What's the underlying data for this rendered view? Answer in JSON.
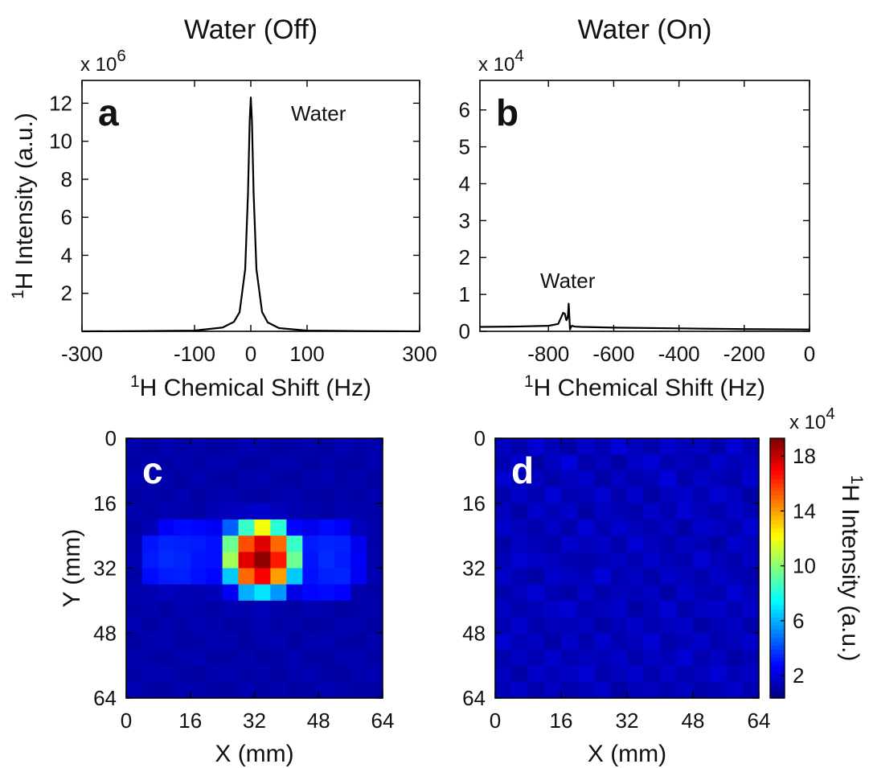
{
  "chart_data": [
    {
      "type": "line",
      "title": "Water (Off)",
      "panel_label": "a",
      "annotation": "Water",
      "multiplier": "x 10",
      "multiplier_exp": "6",
      "xlabel_sup": "1",
      "xlabel": "H Chemical Shift (Hz)",
      "ylabel_sup": "1",
      "ylabel": "H Intensity (a.u.)",
      "x": [
        -300,
        -200,
        -100,
        -50,
        -30,
        -20,
        -10,
        -5,
        -2,
        0,
        2,
        5,
        10,
        20,
        30,
        50,
        100,
        200,
        300
      ],
      "series": [
        {
          "color": "#000000",
          "values": [
            0.0,
            0.01,
            0.04,
            0.2,
            0.5,
            1.0,
            3.26,
            7.26,
            11.07,
            12.3,
            11.07,
            7.26,
            3.26,
            1.02,
            0.47,
            0.17,
            0.04,
            0.01,
            0.0
          ]
        }
      ],
      "xlim": [
        -300,
        300
      ],
      "xticks": [
        -300,
        -100,
        0,
        100,
        300
      ],
      "ylim": [
        0,
        13.2
      ],
      "yticks": [
        2,
        4,
        6,
        8,
        10,
        12
      ]
    },
    {
      "type": "line",
      "title": "Water (On)",
      "panel_label": "b",
      "annotation": "Water",
      "multiplier": "x 10",
      "multiplier_exp": "4",
      "xlabel_sup": "1",
      "xlabel": "H Chemical Shift (Hz)",
      "x": [
        -1010,
        -900,
        -800,
        -770,
        -760,
        -755,
        -750,
        -745,
        -742,
        -740,
        -738,
        -736,
        -734,
        -732,
        -728,
        -720,
        -700,
        -600,
        -400,
        -200,
        0
      ],
      "series": [
        {
          "color": "#000000",
          "values": [
            0.12,
            0.13,
            0.15,
            0.2,
            0.4,
            0.5,
            0.48,
            0.3,
            0.35,
            0.45,
            0.75,
            0.4,
            0.05,
            0.1,
            0.15,
            0.13,
            0.12,
            0.1,
            0.08,
            0.06,
            0.05
          ]
        }
      ],
      "xlim": [
        -1010,
        0
      ],
      "xticks": [
        -800,
        -600,
        -400,
        -200,
        0
      ],
      "ylim": [
        0,
        6.8
      ],
      "yticks": [
        0,
        1,
        2,
        3,
        4,
        5,
        6
      ]
    },
    {
      "type": "heatmap",
      "panel_label": "c",
      "xlabel": "X (mm)",
      "ylabel": "Y (mm)",
      "xlim": [
        0,
        64
      ],
      "xticks": [
        0,
        16,
        32,
        48,
        64
      ],
      "ylim": [
        0,
        64
      ],
      "yticks": [
        0,
        16,
        32,
        48,
        64
      ],
      "y_reversed": true,
      "z": [
        [
          1.2,
          1.0,
          1.3,
          1.1,
          1.2,
          1.0,
          1.1,
          1.3,
          1.2,
          1.0,
          1.1,
          1.2,
          1.0,
          1.3,
          1.1,
          1.2
        ],
        [
          1.1,
          1.3,
          1.0,
          1.2,
          1.1,
          1.3,
          1.2,
          1.0,
          1.1,
          1.3,
          1.2,
          1.0,
          1.2,
          1.1,
          1.0,
          1.3
        ],
        [
          1.3,
          1.1,
          1.2,
          1.0,
          1.3,
          1.1,
          1.0,
          1.2,
          1.3,
          1.1,
          1.0,
          1.2,
          1.3,
          1.1,
          1.2,
          1.0
        ],
        [
          1.0,
          1.2,
          1.1,
          1.3,
          1.0,
          1.2,
          1.3,
          1.1,
          1.0,
          1.2,
          1.3,
          1.1,
          1.0,
          1.2,
          1.1,
          1.3
        ],
        [
          1.2,
          1.1,
          1.3,
          1.2,
          1.1,
          1.4,
          1.5,
          1.6,
          1.8,
          1.5,
          1.3,
          1.2,
          1.1,
          1.3,
          1.2,
          1.1
        ],
        [
          1.1,
          1.4,
          2.6,
          2.9,
          2.8,
          2.5,
          4.5,
          8.5,
          12,
          8.2,
          2.8,
          2.4,
          2.9,
          2.6,
          1.5,
          1.2
        ],
        [
          1.2,
          3.1,
          3.4,
          3.3,
          3.2,
          3.0,
          9.5,
          15.5,
          17.5,
          15,
          8.5,
          3.2,
          3.4,
          3.3,
          2.4,
          1.1
        ],
        [
          1.3,
          3.2,
          3.5,
          3.4,
          3.1,
          3.0,
          10.5,
          17.5,
          19,
          16.5,
          9.5,
          3.1,
          3.5,
          3.2,
          2.6,
          1.2
        ],
        [
          1.1,
          2.9,
          3.2,
          3.3,
          3.0,
          2.8,
          6.5,
          15,
          17,
          14,
          6.5,
          3.0,
          3.3,
          3.4,
          2.5,
          1.3
        ],
        [
          1.2,
          1.3,
          1.5,
          1.4,
          1.3,
          1.4,
          2.5,
          6.0,
          7.0,
          5.5,
          2.2,
          2.8,
          2.9,
          2.7,
          1.2,
          1.1
        ],
        [
          1.1,
          1.2,
          1.0,
          1.3,
          1.2,
          1.1,
          1.3,
          1.2,
          1.4,
          1.2,
          1.1,
          1.3,
          1.2,
          1.0,
          1.1,
          1.2
        ],
        [
          1.3,
          1.0,
          1.2,
          1.1,
          1.3,
          1.2,
          1.0,
          1.1,
          1.3,
          1.1,
          1.2,
          1.0,
          1.1,
          1.3,
          1.2,
          1.0
        ],
        [
          1.0,
          1.2,
          1.3,
          1.0,
          1.1,
          1.3,
          1.2,
          1.0,
          1.2,
          1.3,
          1.0,
          1.2,
          1.3,
          1.1,
          1.0,
          1.2
        ],
        [
          1.2,
          1.1,
          1.0,
          1.2,
          1.3,
          1.0,
          1.1,
          1.2,
          1.0,
          1.1,
          1.3,
          1.1,
          1.0,
          1.2,
          1.3,
          1.1
        ],
        [
          1.1,
          1.3,
          1.2,
          1.1,
          1.0,
          1.2,
          1.3,
          1.1,
          1.2,
          1.0,
          1.2,
          1.3,
          1.1,
          1.0,
          1.2,
          1.3
        ],
        [
          1.3,
          1.1,
          1.0,
          1.3,
          1.2,
          1.1,
          1.0,
          1.3,
          1.1,
          1.2,
          1.0,
          1.1,
          1.3,
          1.2,
          1.1,
          1.0
        ]
      ]
    },
    {
      "type": "heatmap",
      "panel_label": "d",
      "xlabel": "X (mm)",
      "xlim": [
        0,
        64
      ],
      "xticks": [
        0,
        16,
        32,
        48,
        64
      ],
      "ylim": [
        0,
        64
      ],
      "yticks": [
        0,
        16,
        32,
        48,
        64
      ],
      "y_reversed": true,
      "z": [
        [
          1.6,
          1.2,
          1.9,
          1.4,
          1.1,
          1.7,
          1.3,
          2.0,
          1.5,
          1.2,
          1.8,
          1.4,
          1.6,
          1.1,
          1.9,
          1.3
        ],
        [
          1.3,
          1.8,
          1.1,
          1.6,
          2.1,
          1.2,
          1.5,
          1.1,
          1.7,
          1.9,
          1.3,
          1.5,
          1.2,
          1.8,
          1.4,
          1.6
        ],
        [
          1.9,
          1.4,
          1.6,
          1.2,
          1.5,
          1.8,
          1.1,
          1.6,
          1.3,
          1.4,
          2.0,
          1.2,
          1.7,
          1.4,
          1.2,
          1.8
        ],
        [
          1.2,
          1.7,
          1.3,
          1.9,
          1.3,
          1.4,
          1.9,
          1.2,
          1.8,
          1.1,
          1.5,
          1.7,
          1.3,
          1.9,
          1.6,
          1.1
        ],
        [
          1.5,
          1.1,
          1.8,
          1.4,
          1.7,
          1.1,
          1.6,
          1.4,
          1.2,
          1.7,
          1.3,
          1.9,
          1.5,
          1.2,
          1.7,
          1.4
        ],
        [
          1.8,
          1.5,
          1.2,
          1.6,
          1.2,
          1.9,
          1.3,
          1.8,
          1.5,
          1.3,
          1.6,
          1.1,
          1.8,
          1.6,
          1.3,
          1.9
        ],
        [
          1.1,
          1.6,
          1.4,
          1.2,
          1.8,
          1.5,
          1.7,
          1.2,
          1.9,
          1.5,
          1.2,
          1.6,
          1.4,
          1.1,
          1.8,
          1.5
        ],
        [
          1.4,
          1.9,
          1.7,
          1.5,
          1.3,
          1.2,
          1.4,
          1.6,
          1.3,
          1.8,
          1.4,
          1.3,
          1.9,
          1.5,
          1.2,
          1.6
        ],
        [
          1.7,
          1.3,
          1.1,
          1.8,
          1.6,
          1.4,
          2.0,
          1.3,
          1.6,
          1.2,
          1.7,
          1.5,
          1.2,
          1.7,
          1.4,
          1.2
        ],
        [
          1.2,
          1.5,
          1.9,
          1.3,
          1.1,
          1.7,
          1.2,
          1.5,
          1.4,
          1.6,
          1.1,
          1.8,
          1.4,
          1.3,
          1.9,
          1.5
        ],
        [
          1.6,
          1.2,
          1.4,
          1.7,
          1.9,
          1.3,
          1.5,
          1.8,
          1.1,
          1.4,
          1.9,
          1.2,
          1.6,
          1.8,
          1.3,
          1.7
        ],
        [
          1.3,
          1.8,
          1.2,
          1.5,
          1.4,
          1.6,
          1.1,
          1.4,
          1.7,
          1.3,
          1.5,
          1.7,
          1.1,
          1.4,
          1.6,
          1.2
        ],
        [
          1.9,
          1.4,
          1.6,
          1.1,
          1.7,
          1.2,
          1.8,
          1.3,
          1.5,
          1.9,
          1.2,
          1.4,
          1.8,
          1.2,
          1.5,
          1.8
        ],
        [
          1.2,
          1.6,
          1.3,
          1.8,
          1.3,
          1.5,
          1.4,
          1.7,
          1.2,
          1.6,
          1.4,
          1.9,
          1.3,
          1.6,
          1.1,
          1.4
        ],
        [
          1.5,
          1.1,
          1.7,
          1.4,
          1.6,
          1.9,
          1.2,
          1.5,
          1.8,
          1.2,
          1.7,
          1.3,
          1.5,
          1.9,
          1.4,
          1.6
        ],
        [
          1.4,
          1.7,
          1.2,
          1.6,
          1.2,
          1.4,
          1.7,
          1.1,
          1.4,
          1.5,
          1.3,
          1.6,
          1.2,
          1.4,
          1.7,
          1.3
        ]
      ],
      "colorbar": {
        "multiplier": "x 10",
        "multiplier_exp": "4",
        "label_sup": "1",
        "label": "H Intensity (a.u.)",
        "colormap": "jet",
        "lim": [
          0.36,
          19.3
        ],
        "ticks": [
          2,
          6,
          10,
          14,
          18
        ]
      }
    }
  ]
}
